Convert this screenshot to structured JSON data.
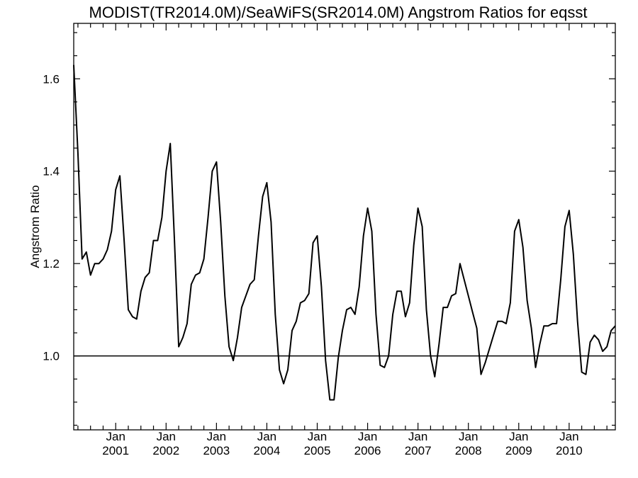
{
  "chart_data": {
    "type": "line",
    "title": "MODIST(TR2014.0M)/SeaWiFS(SR2014.0M)  Angstrom Ratios for eqsst",
    "ylabel": "Angstrom Ratio",
    "xlabel": "",
    "ylim": [
      0.84,
      1.72
    ],
    "y_ticks": [
      {
        "value": 1.0,
        "label": "1.0"
      },
      {
        "value": 1.2,
        "label": "1.2"
      },
      {
        "value": 1.4,
        "label": "1.4"
      },
      {
        "value": 1.6,
        "label": "1.6"
      }
    ],
    "x_range": [
      "2000-03",
      "2010-12"
    ],
    "x_ticks": [
      {
        "date": "2001-01",
        "month": "Jan",
        "year": "2001"
      },
      {
        "date": "2002-01",
        "month": "Jan",
        "year": "2002"
      },
      {
        "date": "2003-01",
        "month": "Jan",
        "year": "2003"
      },
      {
        "date": "2004-01",
        "month": "Jan",
        "year": "2004"
      },
      {
        "date": "2005-01",
        "month": "Jan",
        "year": "2005"
      },
      {
        "date": "2006-01",
        "month": "Jan",
        "year": "2006"
      },
      {
        "date": "2007-01",
        "month": "Jan",
        "year": "2007"
      },
      {
        "date": "2008-01",
        "month": "Jan",
        "year": "2008"
      },
      {
        "date": "2009-01",
        "month": "Jan",
        "year": "2009"
      },
      {
        "date": "2010-01",
        "month": "Jan",
        "year": "2010"
      }
    ],
    "reference_line": 1.0,
    "grid": false,
    "series": [
      {
        "color": "#000000",
        "x": [
          "2000-03",
          "2000-04",
          "2000-05",
          "2000-06",
          "2000-07",
          "2000-08",
          "2000-09",
          "2000-10",
          "2000-11",
          "2000-12",
          "2001-01",
          "2001-02",
          "2001-03",
          "2001-04",
          "2001-05",
          "2001-06",
          "2001-07",
          "2001-08",
          "2001-09",
          "2001-10",
          "2001-11",
          "2001-12",
          "2002-01",
          "2002-02",
          "2002-03",
          "2002-04",
          "2002-05",
          "2002-06",
          "2002-07",
          "2002-08",
          "2002-09",
          "2002-10",
          "2002-11",
          "2002-12",
          "2003-01",
          "2003-02",
          "2003-03",
          "2003-04",
          "2003-05",
          "2003-06",
          "2003-07",
          "2003-08",
          "2003-09",
          "2003-10",
          "2003-11",
          "2003-12",
          "2004-01",
          "2004-02",
          "2004-03",
          "2004-04",
          "2004-05",
          "2004-06",
          "2004-07",
          "2004-08",
          "2004-09",
          "2004-10",
          "2004-11",
          "2004-12",
          "2005-01",
          "2005-02",
          "2005-03",
          "2005-04",
          "2005-05",
          "2005-06",
          "2005-07",
          "2005-08",
          "2005-09",
          "2005-10",
          "2005-11",
          "2005-12",
          "2006-01",
          "2006-02",
          "2006-03",
          "2006-04",
          "2006-05",
          "2006-06",
          "2006-07",
          "2006-08",
          "2006-09",
          "2006-10",
          "2006-11",
          "2006-12",
          "2007-01",
          "2007-02",
          "2007-03",
          "2007-04",
          "2007-05",
          "2007-06",
          "2007-07",
          "2007-08",
          "2007-09",
          "2007-10",
          "2007-11",
          "2007-12",
          "2008-01",
          "2008-02",
          "2008-03",
          "2008-04",
          "2008-05",
          "2008-06",
          "2008-07",
          "2008-08",
          "2008-09",
          "2008-10",
          "2008-11",
          "2008-12",
          "2009-01",
          "2009-02",
          "2009-03",
          "2009-04",
          "2009-05",
          "2009-06",
          "2009-07",
          "2009-08",
          "2009-09",
          "2009-10",
          "2009-11",
          "2009-12",
          "2010-01",
          "2010-02",
          "2010-03",
          "2010-04",
          "2010-05",
          "2010-06",
          "2010-07",
          "2010-08",
          "2010-09",
          "2010-10",
          "2010-11",
          "2010-12"
        ],
        "values": [
          1.63,
          1.44,
          1.21,
          1.225,
          1.175,
          1.2,
          1.2,
          1.21,
          1.23,
          1.27,
          1.36,
          1.39,
          1.25,
          1.1,
          1.085,
          1.08,
          1.14,
          1.17,
          1.18,
          1.25,
          1.25,
          1.3,
          1.4,
          1.46,
          1.25,
          1.02,
          1.04,
          1.07,
          1.155,
          1.175,
          1.18,
          1.21,
          1.3,
          1.4,
          1.42,
          1.29,
          1.13,
          1.02,
          0.99,
          1.04,
          1.105,
          1.13,
          1.155,
          1.165,
          1.26,
          1.345,
          1.375,
          1.29,
          1.09,
          0.97,
          0.94,
          0.97,
          1.055,
          1.075,
          1.115,
          1.12,
          1.135,
          1.245,
          1.26,
          1.15,
          0.99,
          0.905,
          0.905,
          0.995,
          1.055,
          1.1,
          1.105,
          1.09,
          1.15,
          1.26,
          1.32,
          1.27,
          1.09,
          0.98,
          0.975,
          1.0,
          1.09,
          1.14,
          1.14,
          1.085,
          1.115,
          1.24,
          1.32,
          1.28,
          1.1,
          1.0,
          0.955,
          1.025,
          1.105,
          1.105,
          1.13,
          1.135,
          1.2,
          1.165,
          1.13,
          1.095,
          1.06,
          0.96,
          0.985,
          1.015,
          1.045,
          1.075,
          1.075,
          1.07,
          1.115,
          1.27,
          1.295,
          1.235,
          1.12,
          1.06,
          0.975,
          1.025,
          1.065,
          1.065,
          1.07,
          1.07,
          1.165,
          1.28,
          1.315,
          1.22,
          1.075,
          0.965,
          0.96,
          1.03,
          1.045,
          1.035,
          1.01,
          1.02,
          1.055,
          1.065
        ]
      }
    ]
  }
}
